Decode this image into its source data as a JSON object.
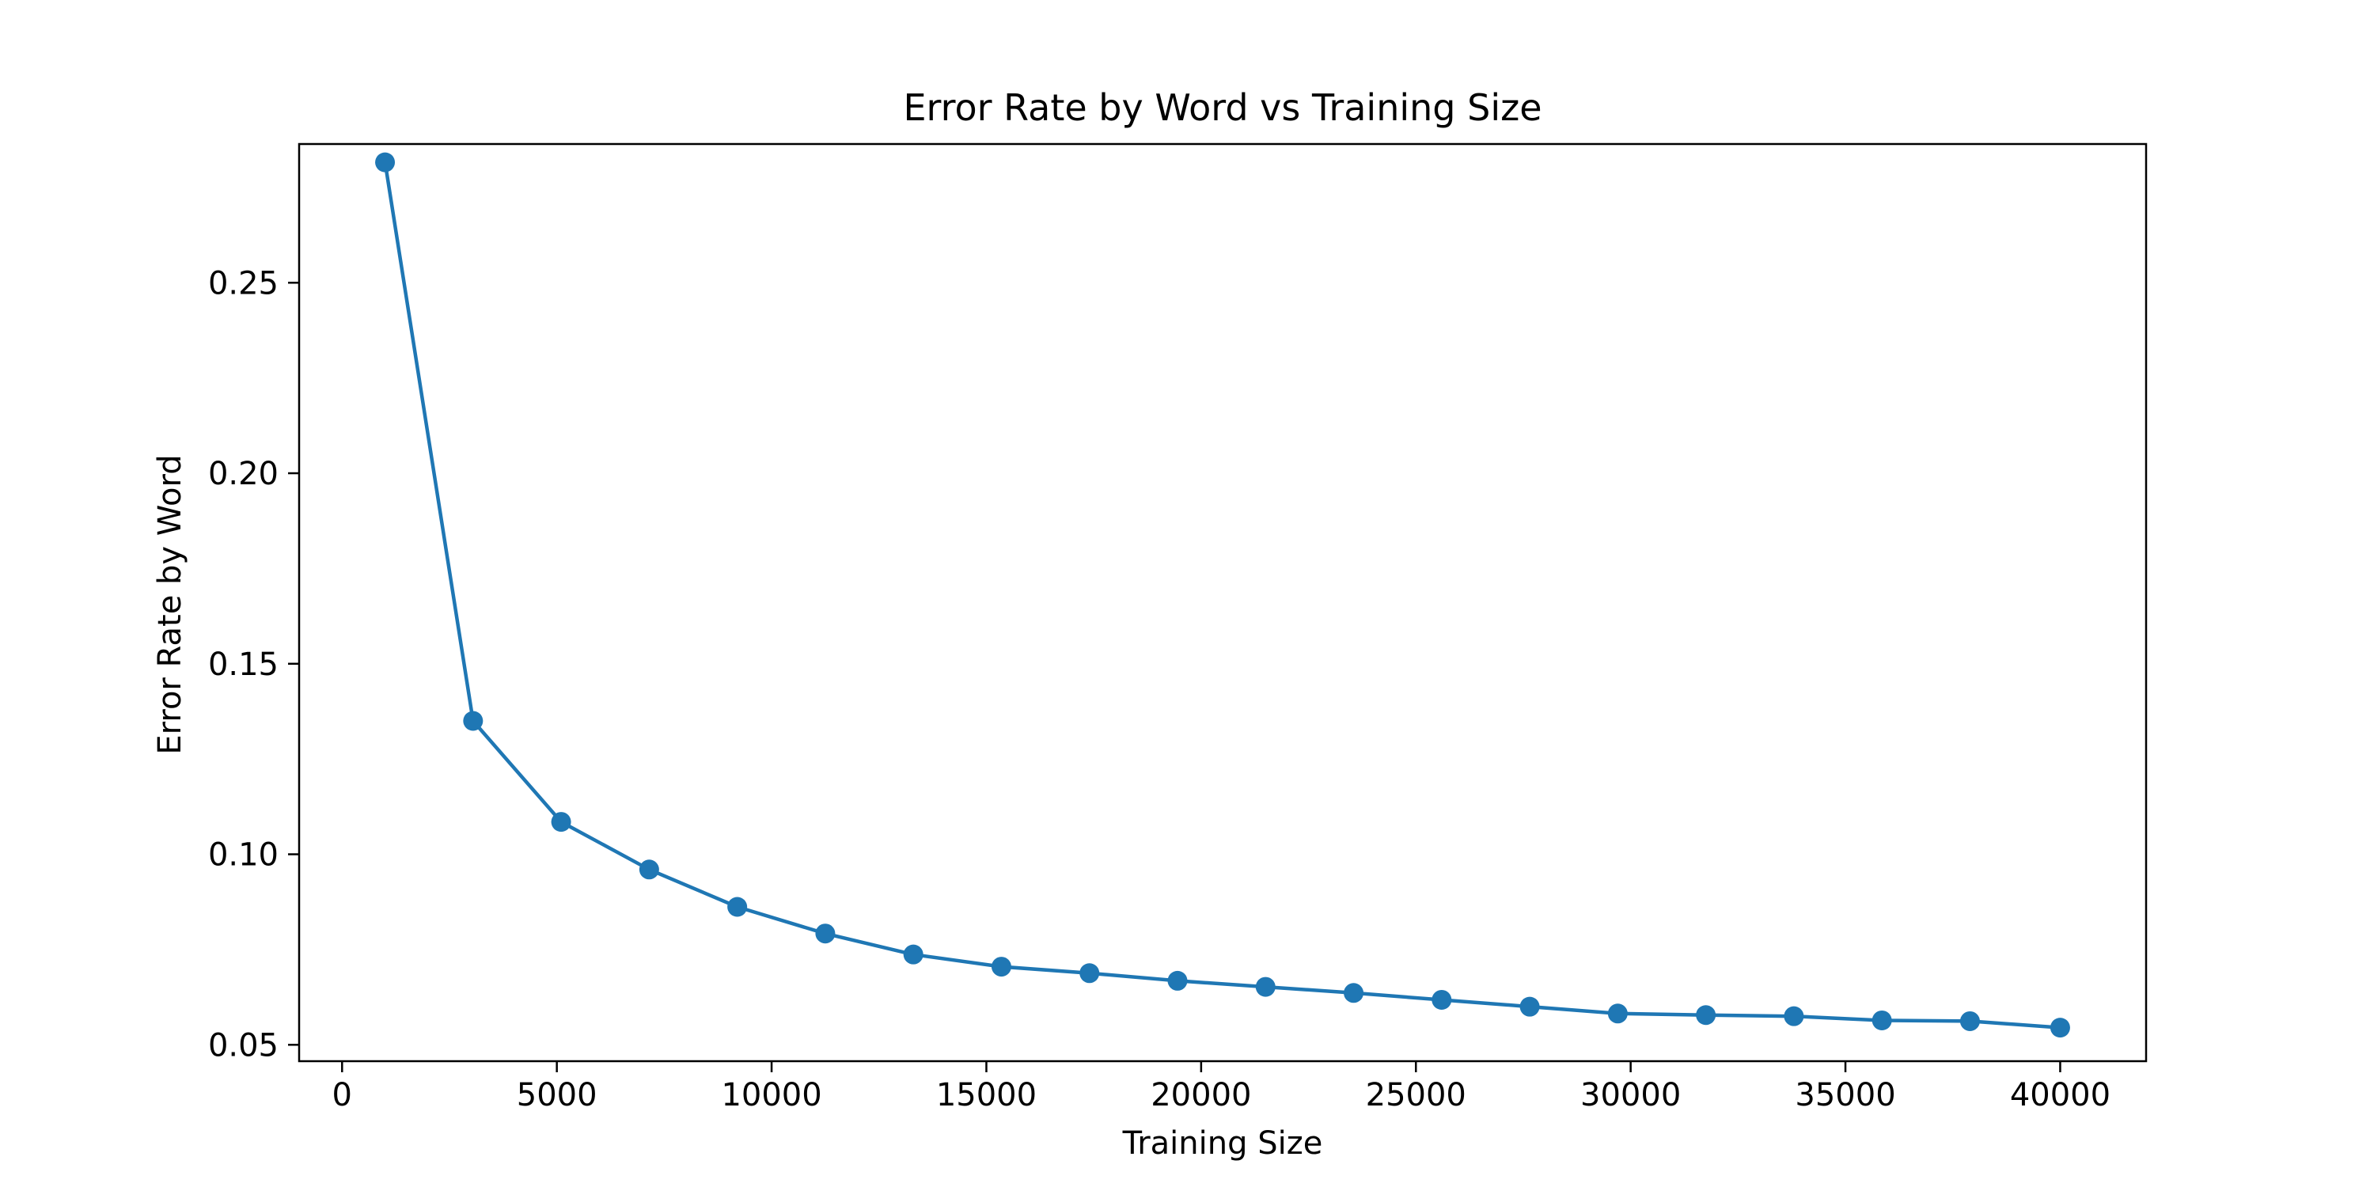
{
  "chart_data": {
    "type": "line",
    "title": "Error Rate by Word vs Training Size",
    "xlabel": "Training Size",
    "ylabel": "Error Rate by Word",
    "xlim": [
      -1000,
      42000
    ],
    "ylim": [
      0.0457,
      0.2864
    ],
    "x_ticks": [
      0,
      5000,
      10000,
      15000,
      20000,
      25000,
      30000,
      35000,
      40000
    ],
    "y_ticks": [
      0.05,
      0.1,
      0.15,
      0.2,
      0.25
    ],
    "grid": false,
    "legend": "none",
    "color": "#1f77b4",
    "series": [
      {
        "x": [
          1000,
          3050,
          5100,
          7150,
          9200,
          11250,
          13300,
          15350,
          17400,
          19450,
          21500,
          23550,
          25600,
          27650,
          29700,
          31750,
          33800,
          35850,
          37900,
          40000
        ],
        "values": [
          0.2816,
          0.135,
          0.1085,
          0.096,
          0.0862,
          0.0792,
          0.0737,
          0.0705,
          0.0688,
          0.0668,
          0.0652,
          0.0636,
          0.0618,
          0.06,
          0.0582,
          0.0578,
          0.0575,
          0.0564,
          0.0562,
          0.0545
        ]
      }
    ]
  }
}
